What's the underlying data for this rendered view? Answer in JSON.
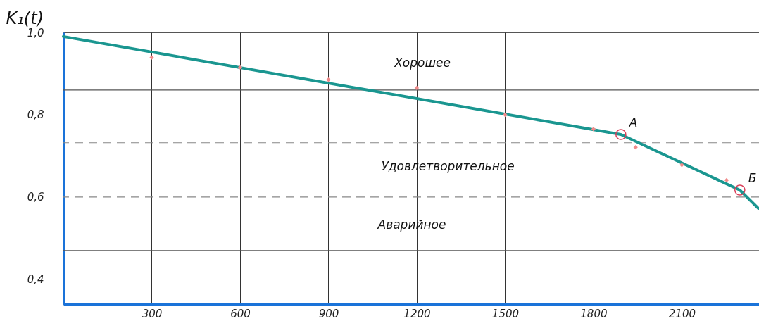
{
  "chart_data": {
    "type": "line",
    "ylabel": "K₁(t)",
    "xlim": [
      0,
      2362
    ],
    "xticks": [
      300,
      600,
      900,
      1200,
      1500,
      1800,
      2100
    ],
    "ylim": [
      0.34,
      1.0
    ],
    "yticks": [
      {
        "value": 0.4,
        "label": "0,4"
      },
      {
        "value": 0.6,
        "label": "0,6"
      },
      {
        "value": 0.8,
        "label": "0,8"
      },
      {
        "value": 1.0,
        "label": "1,0"
      }
    ],
    "grid": "x",
    "series": [
      {
        "color": "#1a9690",
        "marker": "none",
        "x": [
          0,
          1893,
          2297,
          2362
        ],
        "values": [
          0.99,
          0.752,
          0.617,
          0.571
        ]
      },
      {
        "type": "scatter",
        "color": "#f08a8a",
        "marker": "diamond",
        "x": [
          300,
          600,
          900,
          1200,
          1500,
          1800,
          1943,
          2100,
          2252
        ],
        "values": [
          0.939,
          0.915,
          0.885,
          0.865,
          0.8,
          0.765,
          0.721,
          0.678,
          0.641
        ]
      },
      {
        "type": "scatter",
        "color": "#d9405a",
        "marker": "circle",
        "x": [
          1893,
          2297
        ],
        "values": [
          0.752,
          0.617
        ],
        "value_labels": [
          "A",
          "Б"
        ]
      }
    ],
    "ref_lines": [
      {
        "axis": "y",
        "value": 0.86,
        "label": null,
        "color": "#555555",
        "line_style": "solid"
      },
      {
        "axis": "y",
        "value": 0.732,
        "label": null,
        "color": "#888888",
        "line_style": "dashed"
      },
      {
        "axis": "y",
        "value": 0.6,
        "label": null,
        "color": "#888888",
        "line_style": "dashed"
      },
      {
        "axis": "y",
        "value": 0.47,
        "label": null,
        "color": "#555555",
        "line_style": "solid"
      }
    ],
    "annotations": [
      "Хорошее",
      "Удовлетворительное",
      "Аварийное"
    ]
  }
}
